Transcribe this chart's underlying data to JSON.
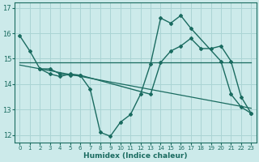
{
  "xlabel": "Humidex (Indice chaleur)",
  "bg_color": "#cceaea",
  "grid_color": "#aad4d4",
  "line_color": "#1a6b60",
  "xlim": [
    -0.5,
    23.5
  ],
  "ylim": [
    11.7,
    17.2
  ],
  "xticks": [
    0,
    1,
    2,
    3,
    4,
    5,
    6,
    7,
    8,
    9,
    10,
    11,
    12,
    13,
    14,
    15,
    16,
    17,
    18,
    19,
    20,
    21,
    22,
    23
  ],
  "yticks": [
    12,
    13,
    14,
    15,
    16,
    17
  ],
  "series1_x": [
    0,
    1,
    2,
    3,
    4,
    5,
    6,
    7,
    8,
    9,
    10,
    11,
    12,
    13,
    14,
    15,
    16,
    17,
    20,
    21,
    22,
    23
  ],
  "series1_y": [
    15.9,
    15.3,
    14.6,
    14.4,
    14.3,
    14.4,
    14.35,
    13.8,
    12.1,
    11.95,
    12.5,
    12.8,
    13.6,
    14.8,
    16.6,
    16.4,
    16.7,
    16.2,
    14.9,
    13.6,
    13.1,
    12.85
  ],
  "series2_x": [
    2,
    3,
    4,
    5,
    6,
    13,
    14,
    15,
    16,
    17,
    18,
    19,
    20,
    21,
    22,
    23
  ],
  "series2_y": [
    14.6,
    14.6,
    14.4,
    14.35,
    14.35,
    13.6,
    14.85,
    15.3,
    15.5,
    15.8,
    15.4,
    15.4,
    15.5,
    14.9,
    13.5,
    12.85
  ],
  "trend1_x": [
    0,
    23
  ],
  "trend1_y": [
    14.85,
    14.85
  ],
  "trend2_x": [
    0,
    23
  ],
  "trend2_y": [
    14.75,
    13.05
  ]
}
